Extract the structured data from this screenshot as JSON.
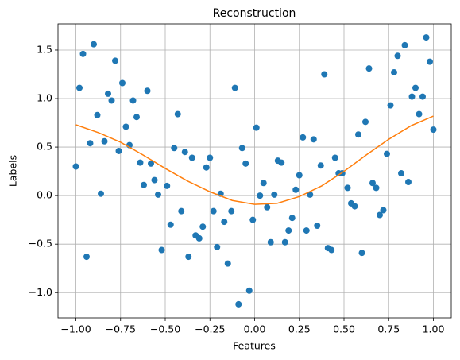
{
  "chart_data": {
    "type": "scatter",
    "title": "Reconstruction",
    "x_label": "Features",
    "y_label": "Labels",
    "xlim": [
      -1.1,
      1.1
    ],
    "ylim": [
      -1.26,
      1.77
    ],
    "grid": true,
    "xticks": [
      {
        "value": -1,
        "label": "−1.00"
      },
      {
        "value": -0.75,
        "label": "−0.75"
      },
      {
        "value": -0.5,
        "label": "−0.50"
      },
      {
        "value": -0.25,
        "label": "−0.25"
      },
      {
        "value": 0,
        "label": "0.00"
      },
      {
        "value": 0.25,
        "label": "0.25"
      },
      {
        "value": 0.5,
        "label": "0.50"
      },
      {
        "value": 0.75,
        "label": "0.75"
      },
      {
        "value": 1,
        "label": "1.00"
      }
    ],
    "yticks": [
      {
        "value": -1,
        "label": "−1.0"
      },
      {
        "value": -0.5,
        "label": "−0.5"
      },
      {
        "value": 0,
        "label": "0.0"
      },
      {
        "value": 0.5,
        "label": "0.5"
      },
      {
        "value": 1,
        "label": "1.0"
      },
      {
        "value": 1.5,
        "label": "1.5"
      }
    ],
    "series": [
      {
        "type": "scatter",
        "color": "#1f77b4",
        "x": [
          -1.0,
          -0.98,
          -0.96,
          -0.94,
          -0.92,
          -0.9,
          -0.88,
          -0.86,
          -0.84,
          -0.82,
          -0.8,
          -0.78,
          -0.76,
          -0.74,
          -0.72,
          -0.7,
          -0.68,
          -0.66,
          -0.64,
          -0.62,
          -0.6,
          -0.58,
          -0.56,
          -0.54,
          -0.52,
          -0.49,
          -0.47,
          -0.45,
          -0.43,
          -0.41,
          -0.39,
          -0.37,
          -0.35,
          -0.33,
          -0.31,
          -0.29,
          -0.27,
          -0.25,
          -0.23,
          -0.21,
          -0.19,
          -0.17,
          -0.15,
          -0.13,
          -0.11,
          -0.09,
          -0.07,
          -0.05,
          -0.03,
          -0.01,
          0.01,
          0.03,
          0.05,
          0.07,
          0.09,
          0.11,
          0.13,
          0.15,
          0.17,
          0.19,
          0.21,
          0.23,
          0.25,
          0.27,
          0.29,
          0.31,
          0.33,
          0.35,
          0.37,
          0.39,
          0.41,
          0.43,
          0.45,
          0.47,
          0.49,
          0.52,
          0.54,
          0.56,
          0.58,
          0.6,
          0.62,
          0.64,
          0.66,
          0.68,
          0.7,
          0.72,
          0.74,
          0.76,
          0.78,
          0.8,
          0.82,
          0.84,
          0.86,
          0.88,
          0.9,
          0.92,
          0.94,
          0.96,
          0.98,
          1.0
        ],
        "values": [
          0.3,
          1.11,
          1.46,
          -0.63,
          0.54,
          1.56,
          0.83,
          0.02,
          0.56,
          1.05,
          0.98,
          1.39,
          0.46,
          1.16,
          0.71,
          0.52,
          0.98,
          0.81,
          0.34,
          0.11,
          1.08,
          0.33,
          0.16,
          0.01,
          -0.56,
          0.1,
          -0.3,
          0.49,
          0.84,
          -0.16,
          0.45,
          -0.63,
          0.39,
          -0.41,
          -0.44,
          -0.32,
          0.29,
          0.39,
          -0.16,
          -0.53,
          0.02,
          -0.27,
          -0.7,
          -0.16,
          1.11,
          -1.12,
          0.49,
          0.33,
          -0.98,
          -0.25,
          0.7,
          0.0,
          0.13,
          -0.12,
          -0.48,
          0.01,
          0.36,
          0.34,
          -0.48,
          -0.36,
          -0.23,
          0.06,
          0.21,
          0.6,
          -0.36,
          0.01,
          0.58,
          -0.31,
          0.31,
          1.25,
          -0.54,
          -0.56,
          0.39,
          0.23,
          0.23,
          0.08,
          -0.08,
          -0.11,
          0.63,
          -0.59,
          0.76,
          1.31,
          0.13,
          0.08,
          -0.2,
          -0.15,
          0.43,
          0.93,
          1.27,
          1.44,
          0.23,
          1.55,
          0.14,
          1.02,
          1.11,
          0.84,
          1.02,
          1.63,
          1.38,
          0.68
        ]
      },
      {
        "type": "line",
        "color": "#ff7f0e",
        "x": [
          -1,
          -0.875,
          -0.75,
          -0.625,
          -0.5,
          -0.375,
          -0.25,
          -0.125,
          0,
          0.125,
          0.25,
          0.375,
          0.5,
          0.625,
          0.75,
          0.875,
          1
        ],
        "values": [
          0.73,
          0.65,
          0.55,
          0.42,
          0.28,
          0.15,
          0.04,
          -0.05,
          -0.09,
          -0.08,
          -0.01,
          0.1,
          0.25,
          0.42,
          0.58,
          0.72,
          0.82
        ]
      }
    ]
  }
}
